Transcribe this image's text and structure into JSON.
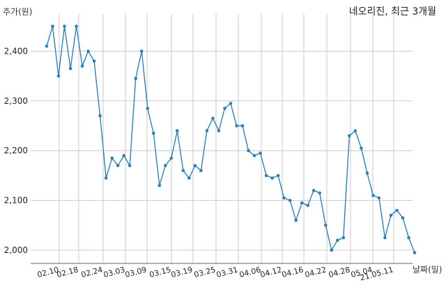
{
  "chart_data": {
    "type": "line",
    "title": "네오리진, 최근 3개월",
    "xlabel": "날짜(일)",
    "ylabel": "주가(원)",
    "ylim": [
      1980,
      2470
    ],
    "yticks": [
      2000,
      2100,
      2200,
      2300,
      2400
    ],
    "ytick_labels": [
      "2,000",
      "2,100",
      "2,200",
      "2,300",
      "2,400"
    ],
    "xticks": [
      "02.10",
      "02.18",
      "02.24",
      "03.03",
      "03.09",
      "03.15",
      "03.19",
      "03.25",
      "03.31",
      "04.06",
      "04.12",
      "04.16",
      "04.22",
      "04.28",
      "05.04",
      "21.05.11"
    ],
    "grid": true,
    "color": "#2f7fb0",
    "series": [
      {
        "values": [
          2410,
          2450,
          2350,
          2450,
          2365,
          2450,
          2370,
          2400,
          2380,
          2270,
          2145,
          2185,
          2170,
          2190,
          2170,
          2345,
          2400,
          2285,
          2235,
          2130,
          2170,
          2185,
          2240,
          2160,
          2145,
          2170,
          2160,
          2240,
          2265,
          2240,
          2285,
          2295,
          2250,
          2250,
          2200,
          2190,
          2195,
          2150,
          2145,
          2150,
          2105,
          2100,
          2060,
          2095,
          2090,
          2120,
          2115,
          2050,
          2000,
          2020,
          2025,
          2230,
          2240,
          2205,
          2155,
          2110,
          2105,
          2025,
          2070,
          2080,
          2065,
          2025,
          1995
        ]
      }
    ]
  }
}
